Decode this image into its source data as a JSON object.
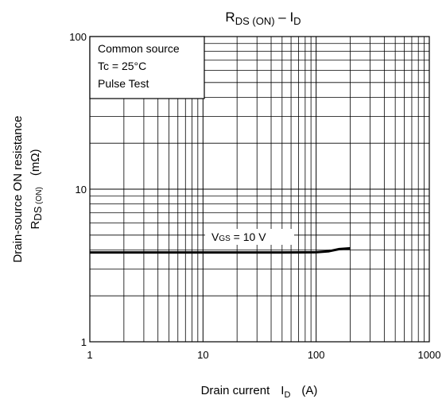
{
  "chart_data": {
    "type": "line",
    "title": {
      "main": "R",
      "main_sub": "DS (ON)",
      "dash": " – I",
      "dash_sub": "D"
    },
    "xlabel": {
      "text": "Drain current",
      "symbol": "I",
      "symbol_sub": "D",
      "unit": "(A)"
    },
    "ylabel": {
      "line1": "Drain-source ON resistance",
      "line2_main": "R",
      "line2_sub_big": "DS",
      "line2_sub_small": " (ON)",
      "line2_unit": "(mΩ)"
    },
    "x_scale": "log",
    "y_scale": "log",
    "xlim": [
      1,
      1000
    ],
    "ylim": [
      1,
      100
    ],
    "x_ticks": [
      "1",
      "10",
      "100",
      "1000"
    ],
    "y_ticks": [
      "1",
      "10",
      "100"
    ],
    "grid": true,
    "legend_box": [
      "Common source",
      "Tc = 25°C",
      "Pulse Test"
    ],
    "annotation": {
      "main": "V",
      "sub": "GS",
      "rest": " = 10 V"
    },
    "series": [
      {
        "x": [
          1,
          2,
          5,
          10,
          20,
          50,
          100,
          130,
          160,
          200
        ],
        "y": [
          3.85,
          3.85,
          3.85,
          3.85,
          3.85,
          3.85,
          3.86,
          3.92,
          4.05,
          4.1
        ]
      }
    ]
  }
}
